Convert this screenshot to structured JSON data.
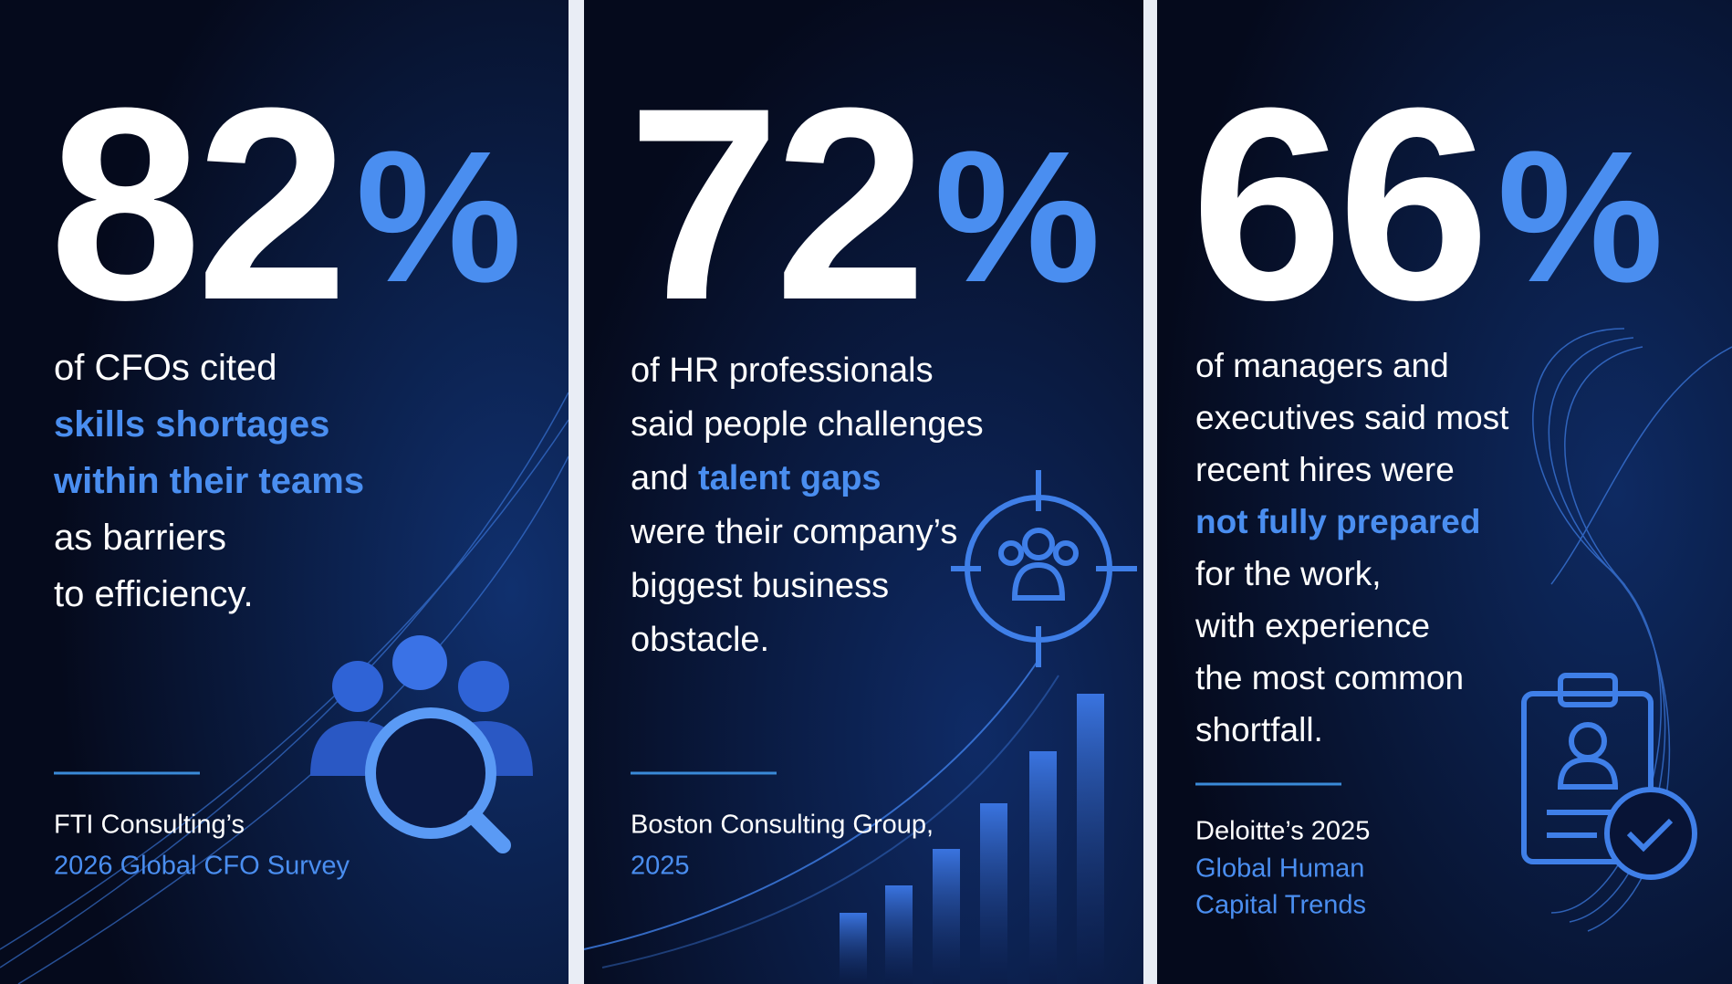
{
  "panels": [
    {
      "stat": "82",
      "unit": "%",
      "lines": [
        [
          {
            "text": "of CFOs cited",
            "accent": false
          }
        ],
        [
          {
            "text": "skills shortages",
            "accent": true
          }
        ],
        [
          {
            "text": "within their teams",
            "accent": true
          }
        ],
        [
          {
            "text": "as barriers",
            "accent": false
          }
        ],
        [
          {
            "text": "to efficiency.",
            "accent": false
          }
        ]
      ],
      "source": [
        {
          "text": "FTI Consulting’s",
          "accent": false
        },
        {
          "text": "2026 Global CFO Survey",
          "accent": true
        }
      ]
    },
    {
      "stat": "72",
      "unit": "%",
      "lines": [
        [
          {
            "text": "of HR professionals",
            "accent": false
          }
        ],
        [
          {
            "text": "said people challenges",
            "accent": false
          }
        ],
        [
          {
            "text": "and ",
            "accent": false
          },
          {
            "text": "talent gaps",
            "accent": true
          }
        ],
        [
          {
            "text": "were their company’s",
            "accent": false
          }
        ],
        [
          {
            "text": "biggest business",
            "accent": false
          }
        ],
        [
          {
            "text": "obstacle.",
            "accent": false
          }
        ]
      ],
      "source": [
        {
          "text": "Boston Consulting Group,",
          "accent": false
        },
        {
          "text": "2025",
          "accent": true
        }
      ]
    },
    {
      "stat": "66",
      "unit": "%",
      "lines": [
        [
          {
            "text": "of managers and",
            "accent": false
          }
        ],
        [
          {
            "text": "executives said most",
            "accent": false
          }
        ],
        [
          {
            "text": "recent hires were",
            "accent": false
          }
        ],
        [
          {
            "text": "not fully prepared",
            "accent": true
          }
        ],
        [
          {
            "text": "for the work,",
            "accent": false
          }
        ],
        [
          {
            "text": "with experience",
            "accent": false
          }
        ],
        [
          {
            "text": "the most common",
            "accent": false
          }
        ],
        [
          {
            "text": "shortfall.",
            "accent": false
          }
        ]
      ],
      "source": [
        {
          "text": "Deloitte’s 2025",
          "accent": false
        },
        {
          "text": "Global Human",
          "accent": true
        },
        {
          "text": "Capital Trends",
          "accent": true
        }
      ]
    }
  ]
}
